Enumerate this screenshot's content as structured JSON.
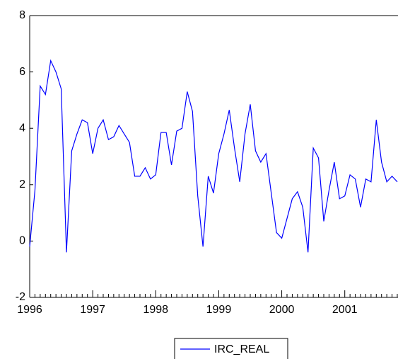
{
  "chart_data": {
    "type": "line",
    "categories": [
      "1996",
      null,
      null,
      null,
      null,
      null,
      null,
      null,
      null,
      null,
      null,
      null,
      "1997",
      null,
      null,
      null,
      null,
      null,
      null,
      null,
      null,
      null,
      null,
      null,
      "1998",
      null,
      null,
      null,
      null,
      null,
      null,
      null,
      null,
      null,
      null,
      null,
      "1999",
      null,
      null,
      null,
      null,
      null,
      null,
      null,
      null,
      null,
      null,
      null,
      "2000",
      null,
      null,
      null,
      null,
      null,
      null,
      null,
      null,
      null,
      null,
      null,
      "2001",
      null,
      null,
      null,
      null,
      null,
      null,
      null,
      null,
      null,
      null
    ],
    "series": [
      {
        "name": "IRC_REAL",
        "color": "#0000ff",
        "values": [
          -0.2,
          1.8,
          5.5,
          5.2,
          6.4,
          6.0,
          5.4,
          -0.4,
          3.2,
          3.8,
          4.3,
          4.2,
          3.1,
          4.0,
          4.3,
          3.6,
          3.7,
          4.1,
          3.8,
          3.5,
          2.3,
          2.3,
          2.6,
          2.2,
          2.35,
          3.85,
          3.85,
          2.7,
          3.9,
          4.0,
          5.3,
          4.6,
          1.6,
          -0.2,
          2.3,
          1.7,
          3.1,
          3.8,
          4.65,
          3.3,
          2.1,
          3.8,
          4.85,
          3.2,
          2.8,
          3.1,
          1.7,
          0.3,
          0.1,
          0.8,
          1.5,
          1.75,
          1.2,
          -0.4,
          3.3,
          2.95,
          0.7,
          1.8,
          2.8,
          1.5,
          1.6,
          2.35,
          2.2,
          1.2,
          2.2,
          2.1,
          4.3,
          2.8,
          2.1,
          2.3,
          2.1
        ]
      }
    ],
    "ylim": [
      -2,
      8
    ],
    "yticks": [
      -2,
      0,
      2,
      4,
      6,
      8
    ],
    "grid": false,
    "legend": "bottom"
  }
}
